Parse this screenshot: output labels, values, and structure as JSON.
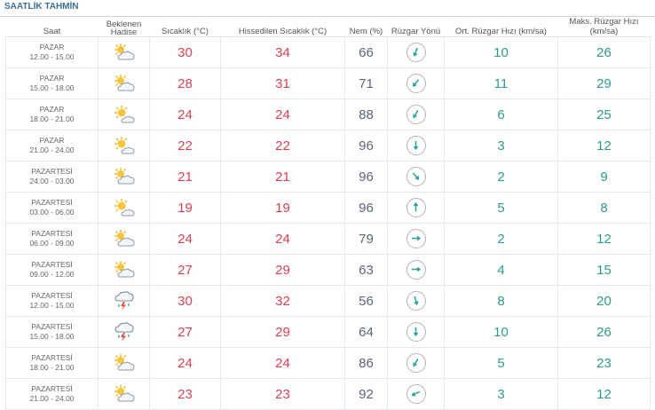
{
  "title": "SAATLİK TAHMİN",
  "headers": {
    "saat": "Saat",
    "hadise_line1": "Beklenen",
    "hadise_line2": "Hadise",
    "sicaklik": "Sıcaklık (°C)",
    "hissedilen": "Hissedilen Sıcaklık (°C)",
    "nem": "Nem (%)",
    "ruzgar_yonu": "Rüzgar Yönü",
    "ort_ruzgar": "Ort. Rüzgar Hızı (km/sa)",
    "maks_ruzgar": "Maks. Rüzgar Hızı (km/sa)"
  },
  "colors": {
    "temp": "#d94154",
    "humidity": "#5a6577",
    "wind": "#2e9a8c",
    "title": "#3d6f94"
  },
  "rows": [
    {
      "day": "PAZAR",
      "time": "12.00 - 15.00",
      "icon": "partly-cloudy-icon",
      "temp": "30",
      "feels": "34",
      "hum": "66",
      "wind_dir_deg": 200,
      "avg": "10",
      "max": "26"
    },
    {
      "day": "PAZAR",
      "time": "15.00 - 18.00",
      "icon": "partly-cloudy-icon",
      "temp": "28",
      "feels": "31",
      "hum": "71",
      "wind_dir_deg": 220,
      "avg": "11",
      "max": "29"
    },
    {
      "day": "PAZAR",
      "time": "18.00 - 21.00",
      "icon": "mostly-sunny-icon",
      "temp": "24",
      "feels": "24",
      "hum": "88",
      "wind_dir_deg": 210,
      "avg": "6",
      "max": "25"
    },
    {
      "day": "PAZAR",
      "time": "21.00 - 24.00",
      "icon": "mostly-sunny-icon",
      "temp": "22",
      "feels": "22",
      "hum": "96",
      "wind_dir_deg": 180,
      "avg": "3",
      "max": "12"
    },
    {
      "day": "PAZARTESİ",
      "time": "24.00 - 03.00",
      "icon": "partly-cloudy-icon",
      "temp": "21",
      "feels": "21",
      "hum": "96",
      "wind_dir_deg": 140,
      "avg": "2",
      "max": "9"
    },
    {
      "day": "PAZARTESİ",
      "time": "03.00 - 06.00",
      "icon": "mostly-sunny-icon",
      "temp": "19",
      "feels": "19",
      "hum": "96",
      "wind_dir_deg": 0,
      "avg": "5",
      "max": "8"
    },
    {
      "day": "PAZARTESİ",
      "time": "06.00 - 09.00",
      "icon": "partly-cloudy-icon",
      "temp": "24",
      "feels": "24",
      "hum": "79",
      "wind_dir_deg": 90,
      "avg": "2",
      "max": "12"
    },
    {
      "day": "PAZARTESİ",
      "time": "09.00 - 12.00",
      "icon": "partly-cloudy-icon",
      "temp": "27",
      "feels": "29",
      "hum": "63",
      "wind_dir_deg": 90,
      "avg": "4",
      "max": "15"
    },
    {
      "day": "PAZARTESİ",
      "time": "12.00 - 15.00",
      "icon": "thunderstorm-icon",
      "temp": "30",
      "feels": "32",
      "hum": "56",
      "wind_dir_deg": 165,
      "avg": "8",
      "max": "20"
    },
    {
      "day": "PAZARTESİ",
      "time": "15.00 - 18.00",
      "icon": "thunderstorm-icon",
      "temp": "27",
      "feels": "29",
      "hum": "64",
      "wind_dir_deg": 180,
      "avg": "10",
      "max": "26"
    },
    {
      "day": "PAZARTESİ",
      "time": "18.00 - 21.00",
      "icon": "partly-cloudy-icon",
      "temp": "24",
      "feels": "24",
      "hum": "86",
      "wind_dir_deg": 210,
      "avg": "5",
      "max": "23"
    },
    {
      "day": "PAZARTESİ",
      "time": "21.00 - 24.00",
      "icon": "partly-cloudy-icon",
      "temp": "23",
      "feels": "23",
      "hum": "92",
      "wind_dir_deg": 245,
      "avg": "3",
      "max": "12"
    }
  ]
}
